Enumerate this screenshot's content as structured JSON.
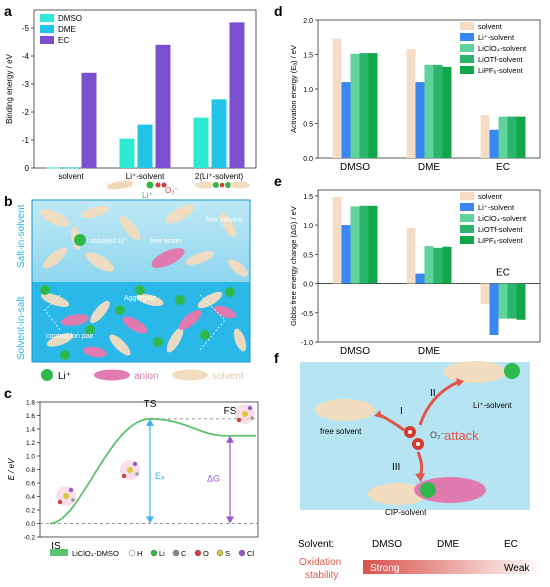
{
  "panel_labels": {
    "a": "a",
    "b": "b",
    "c": "c",
    "d": "d",
    "e": "e",
    "f": "f"
  },
  "colors": {
    "dmso": "#2ee8d6",
    "dme": "#22c5e8",
    "ec": "#7a4fd0",
    "solvent": "#f7dcc5",
    "li": "#3a86f2",
    "liclo4": "#5fd39b",
    "liotf": "#2ab46c",
    "lipf6": "#12a64a",
    "salt_band": "#a8e0f2",
    "solvent_band": "#29b8e8",
    "li_ion": "#2fb84a",
    "anion": "#e07ab0",
    "solvent_mol": "#f3ddc0",
    "ts_curve": "#5cc26e",
    "ea_arrow": "#3fb4ea",
    "dg_arrow": "#9b59d0",
    "attack": "#e2564a"
  },
  "chart_data": [
    {
      "id": "a",
      "type": "bar",
      "ylabel": "Binding energy / eV",
      "ylim": [
        0,
        -5.5
      ],
      "yticks": [
        "0",
        "-1",
        "-2",
        "-3",
        "-4",
        "-5"
      ],
      "categories": [
        "solvent",
        "Li⁺-solvent",
        "2(Li⁺-solvent)"
      ],
      "series": [
        {
          "name": "DMSO",
          "values": [
            -0.02,
            -1.05,
            -1.8
          ]
        },
        {
          "name": "DME",
          "values": [
            -0.02,
            -1.55,
            -2.45
          ]
        },
        {
          "name": "EC",
          "values": [
            -3.4,
            -4.4,
            -5.2
          ]
        }
      ],
      "legend": "top-left"
    },
    {
      "id": "d",
      "type": "bar",
      "ylabel": "Activation energy (Eₐ) / eV",
      "ylim": [
        0,
        2.0
      ],
      "categories": [
        "DMSO",
        "DME",
        "EC"
      ],
      "series": [
        {
          "name": "solvent",
          "values": [
            1.73,
            1.58,
            0.62
          ]
        },
        {
          "name": "Li⁺-solvent",
          "values": [
            1.1,
            1.1,
            0.41
          ]
        },
        {
          "name": "LiClO₄-solvent",
          "values": [
            1.51,
            1.35,
            0.6
          ]
        },
        {
          "name": "LiOTf-solvent",
          "values": [
            1.52,
            1.35,
            0.6
          ]
        },
        {
          "name": "LiPF₆-solvent",
          "values": [
            1.52,
            1.32,
            0.6
          ]
        }
      ],
      "legend": "top-right"
    },
    {
      "id": "e",
      "type": "bar",
      "ylabel": "Gibbs free energy change (ΔG) / eV",
      "ylim": [
        -1.0,
        1.6
      ],
      "categories": [
        "DMSO",
        "DME",
        "EC"
      ],
      "series": [
        {
          "name": "solvent",
          "values": [
            1.48,
            0.95,
            -0.35
          ]
        },
        {
          "name": "Li⁺-solvent",
          "values": [
            1.0,
            0.17,
            -0.88
          ]
        },
        {
          "name": "LiClO₄-solvent",
          "values": [
            1.32,
            0.64,
            -0.6
          ]
        },
        {
          "name": "LiOTf-solvent",
          "values": [
            1.33,
            0.61,
            -0.6
          ]
        },
        {
          "name": "LiPF₆-solvent",
          "values": [
            1.33,
            0.63,
            -0.62
          ]
        }
      ],
      "legend": "top-right"
    },
    {
      "id": "c",
      "type": "line",
      "ylabel": "E / eV",
      "ylim": [
        -0.2,
        1.8
      ],
      "yticks": [
        "-0.2",
        "0.0",
        "0.2",
        "0.4",
        "0.6",
        "0.8",
        "1.0",
        "1.2",
        "1.4",
        "1.6",
        "1.8"
      ],
      "points": {
        "IS": "IS",
        "TS": "TS",
        "FS": "FS"
      },
      "ea_label": "Eₐ",
      "dg_label": "ΔG",
      "legend": {
        "line": "LiClO₄-DMSO",
        "atoms": [
          "H",
          "Li",
          "C",
          "O",
          "S",
          "Cl"
        ]
      }
    }
  ],
  "panel_a": {
    "li_label": "Li⁺",
    "o2_label": "O₂⁻",
    "solvent_tag": "solvent"
  },
  "panel_b": {
    "salt_label": "Salt-in-solvent",
    "solvent_label": "Solvent-in-salt",
    "solvated_li": "solvated Li⁺",
    "free_anion": "free anion",
    "free_solvent": "free solvent",
    "aggregate": "Aggregate",
    "contact_ion_pair": "contact ion pair",
    "legend": {
      "li": "Li⁺",
      "anion": "anion",
      "solvent": "solvent"
    }
  },
  "panel_f": {
    "free_solvent": "free solvent",
    "li_solvent": "Li⁺-solvent",
    "cip_solvent": "CIP-solvent",
    "o2": "O₂⁻",
    "attack": "attack",
    "path_I": "I",
    "path_II": "II",
    "path_III": "III",
    "solvent_row_label": "Solvent:",
    "solvents": [
      "DMSO",
      "DME",
      "EC"
    ],
    "oxidation_label_1": "Oxidation",
    "oxidation_label_2": "stability",
    "strong": "Strong",
    "weak": "Weak"
  }
}
